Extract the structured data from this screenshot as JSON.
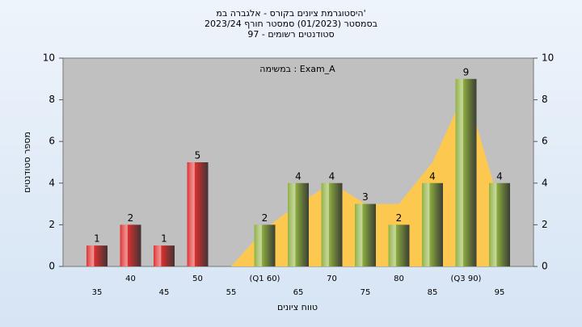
{
  "chart_data": {
    "type": "bar",
    "title": [
      "היסטוגרמת ציונים בקורס - אלגברה במ'",
      "בסמסטר (01/2023) סמסטר חורף 2023/24",
      "סטודנטים רשומים - 97"
    ],
    "annotation": "במשימה : Exam_A",
    "xlabel": "טווח ציונים",
    "ylabel": "מספר סטודנטים",
    "categories": [
      "35",
      "40",
      "45",
      "50",
      "55",
      "(Q1 60)",
      "65",
      "70",
      "75",
      "80",
      "85",
      "(Q3 90)",
      "95"
    ],
    "values": [
      1,
      2,
      1,
      5,
      0,
      2,
      4,
      4,
      3,
      2,
      4,
      9,
      4
    ],
    "colors": [
      "#e03030",
      "#e03030",
      "#e03030",
      "#e03030",
      "#e03030",
      "#8fb040",
      "#8fb040",
      "#8fb040",
      "#8fb040",
      "#8fb040",
      "#8fb040",
      "#8fb040",
      "#8fb040"
    ],
    "overlay": {
      "type": "area",
      "color": "#fcc850",
      "values": [
        null,
        null,
        null,
        null,
        0,
        1.8,
        3,
        4,
        3,
        3,
        5,
        8.5,
        3
      ]
    },
    "ylim": [
      0,
      10
    ],
    "yticks": [
      0,
      2,
      4,
      6,
      8,
      10
    ],
    "y2lim": [
      0,
      10
    ],
    "y2ticks": [
      0,
      2,
      4,
      6,
      8,
      10
    ]
  }
}
